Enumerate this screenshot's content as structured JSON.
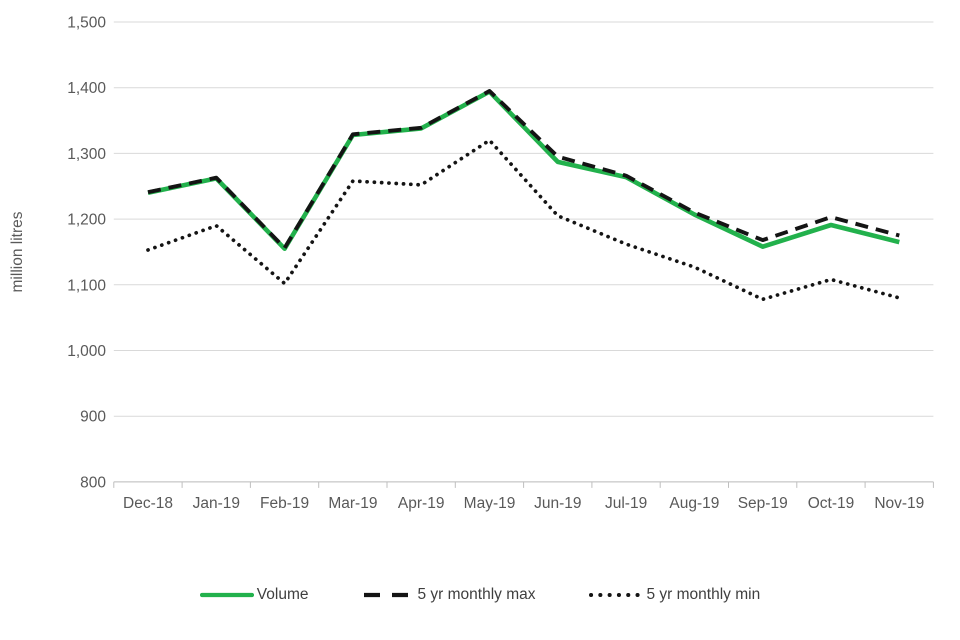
{
  "chart_data": {
    "type": "line",
    "title": "",
    "xlabel": "",
    "ylabel": "million litres",
    "ylim": [
      800,
      1500
    ],
    "grid": true,
    "legend_position": "bottom",
    "colors": {
      "grid": "#d9d9d9",
      "axis": "#bfbfbf",
      "axis_text": "#595959",
      "legend_text": "#3f3f3f",
      "volume_green": "#22b14c",
      "series_black": "#141414"
    },
    "yticks": [
      {
        "value": 1500,
        "label": "1,500"
      },
      {
        "value": 1400,
        "label": "1,400"
      },
      {
        "value": 1300,
        "label": "1,300"
      },
      {
        "value": 1200,
        "label": "1,200"
      },
      {
        "value": 1100,
        "label": "1,100"
      },
      {
        "value": 1000,
        "label": "1,000"
      },
      {
        "value": 900,
        "label": "900"
      },
      {
        "value": 800,
        "label": "800"
      }
    ],
    "categories": [
      "Dec-18",
      "Jan-19",
      "Feb-19",
      "Mar-19",
      "Apr-19",
      "May-19",
      "Jun-19",
      "Jul-19",
      "Aug-19",
      "Sep-19",
      "Oct-19",
      "Nov-19"
    ],
    "series": [
      {
        "name": "Volume",
        "style": "solid",
        "color": "#22b14c",
        "values": [
          1240,
          1262,
          1155,
          1328,
          1338,
          1394,
          1287,
          1264,
          1207,
          1158,
          1191,
          1165
        ]
      },
      {
        "name": "5 yr monthly max",
        "style": "dashed",
        "color": "#141414",
        "values": [
          1241,
          1263,
          1156,
          1329,
          1339,
          1395,
          1295,
          1266,
          1210,
          1168,
          1203,
          1175
        ]
      },
      {
        "name": "5 yr monthly min",
        "style": "dotted",
        "color": "#141414",
        "values": [
          1153,
          1190,
          1102,
          1258,
          1252,
          1320,
          1205,
          1162,
          1127,
          1078,
          1108,
          1080
        ]
      }
    ]
  }
}
